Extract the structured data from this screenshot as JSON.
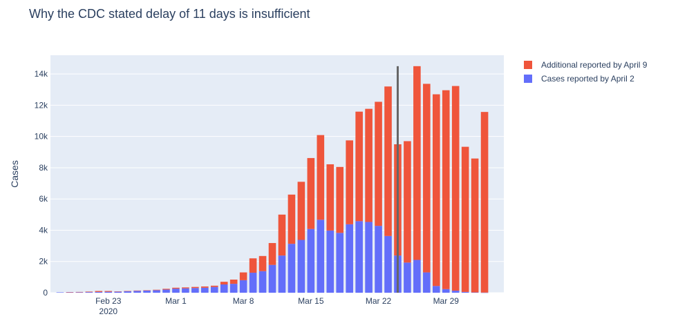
{
  "chart_data": {
    "type": "bar",
    "barmode": "stack",
    "title": "Why the CDC stated delay of 11 days is insufficient",
    "xlabel": "",
    "ylabel": "Cases",
    "ylim": [
      0,
      15200
    ],
    "yticks": [
      0,
      2000,
      4000,
      6000,
      8000,
      10000,
      12000,
      14000
    ],
    "ytick_labels": [
      "0",
      "2k",
      "4k",
      "6k",
      "8k",
      "10k",
      "12k",
      "14k"
    ],
    "x_start": "2020-02-18",
    "x_range": [
      "2020-02-17",
      "2020-04-04"
    ],
    "xticks": [
      {
        "date": "2020-02-23",
        "label": "Feb 23",
        "sublabel": "2020"
      },
      {
        "date": "2020-03-01",
        "label": "Mar 1",
        "sublabel": ""
      },
      {
        "date": "2020-03-08",
        "label": "Mar 8",
        "sublabel": ""
      },
      {
        "date": "2020-03-15",
        "label": "Mar 15",
        "sublabel": ""
      },
      {
        "date": "2020-03-22",
        "label": "Mar 22",
        "sublabel": ""
      },
      {
        "date": "2020-03-29",
        "label": "Mar 29",
        "sublabel": ""
      }
    ],
    "legend_position": "top-right",
    "series": [
      {
        "name": "Cases reported by April 2",
        "color": "#636efa",
        "values": [
          25,
          30,
          30,
          40,
          50,
          60,
          70,
          90,
          120,
          140,
          160,
          200,
          260,
          280,
          300,
          320,
          370,
          530,
          570,
          800,
          1280,
          1380,
          1780,
          2380,
          3130,
          3380,
          4080,
          4670,
          3980,
          3830,
          4380,
          4580,
          4530,
          4280,
          3630,
          2380,
          1930,
          2100,
          1300,
          430,
          230,
          130,
          50,
          20,
          10
        ]
      },
      {
        "name": "Additional reported by April 9",
        "color": "#ef553b",
        "values": [
          0,
          10,
          20,
          30,
          60,
          50,
          10,
          20,
          20,
          20,
          30,
          50,
          60,
          60,
          70,
          80,
          80,
          170,
          270,
          500,
          920,
          970,
          1400,
          2620,
          3150,
          3720,
          4540,
          5420,
          4240,
          4220,
          5370,
          7010,
          7240,
          7940,
          9570,
          7120,
          7770,
          12400,
          12070,
          12270,
          12730,
          13100,
          9290,
          8570,
          11560
        ]
      }
    ],
    "vline": {
      "date": "2020-03-24",
      "y0": 0,
      "y1": 14500,
      "color": "#666666"
    }
  }
}
